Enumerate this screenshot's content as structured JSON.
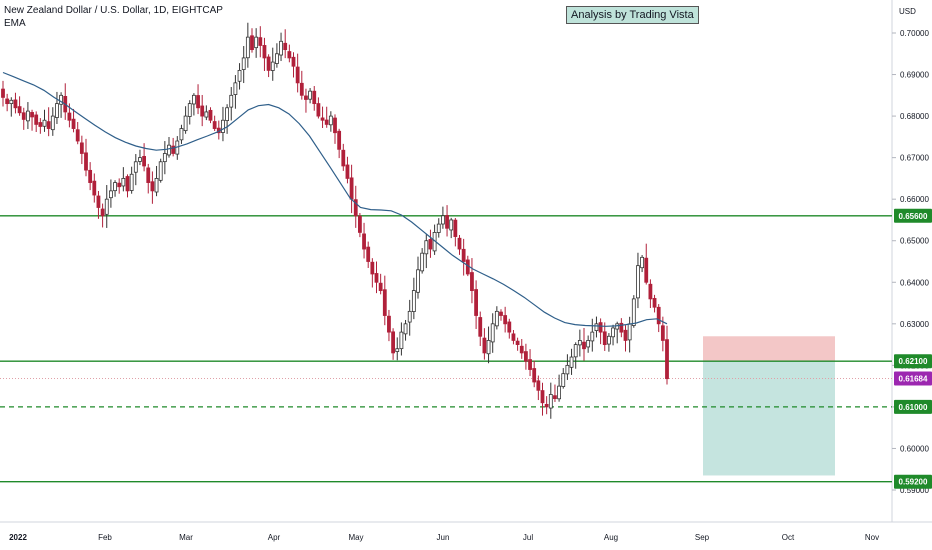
{
  "header": {
    "title": "New Zealand Dollar / U.S. Dollar, 1D, EIGHTCAP",
    "indicator": "EMA"
  },
  "watermark": "Analysis by Trading Vista",
  "currency": "USD",
  "colors": {
    "up": "#333333",
    "down": "#b0203a",
    "ema": "#2f5f8a",
    "level": "#1f8a2a",
    "price_tag": "#9c27b0",
    "stop_zone": "#f3c7c7",
    "target_zone": "#c5e4df"
  },
  "chart_data": {
    "type": "candlestick",
    "title": "New Zealand Dollar / U.S. Dollar, 1D, EIGHTCAP",
    "ylim": [
      0.5885,
      0.7135
    ],
    "y_ticks": [
      "0.70000",
      "0.69000",
      "0.68000",
      "0.67000",
      "0.66000",
      "0.65000",
      "0.64000",
      "0.63000",
      "0.62000",
      "0.61000",
      "0.60000",
      "0.59000"
    ],
    "x_labels": [
      "2022",
      "Feb",
      "Mar",
      "Apr",
      "May",
      "Jun",
      "Jul",
      "Aug",
      "Sep",
      "Oct",
      "Nov"
    ],
    "ohlc_close_approx": [
      0.6845,
      0.683,
      0.6838,
      0.682,
      0.6808,
      0.6792,
      0.6812,
      0.6798,
      0.678,
      0.6775,
      0.679,
      0.677,
      0.68,
      0.683,
      0.685,
      0.681,
      0.679,
      0.677,
      0.674,
      0.671,
      0.667,
      0.664,
      0.661,
      0.658,
      0.656,
      0.66,
      0.662,
      0.664,
      0.663,
      0.665,
      0.662,
      0.666,
      0.669,
      0.67,
      0.668,
      0.664,
      0.662,
      0.665,
      0.669,
      0.671,
      0.673,
      0.671,
      0.674,
      0.677,
      0.68,
      0.683,
      0.685,
      0.682,
      0.68,
      0.681,
      0.679,
      0.677,
      0.676,
      0.679,
      0.682,
      0.685,
      0.688,
      0.691,
      0.694,
      0.699,
      0.696,
      0.699,
      0.697,
      0.694,
      0.691,
      0.693,
      0.695,
      0.698,
      0.696,
      0.694,
      0.692,
      0.688,
      0.685,
      0.684,
      0.686,
      0.683,
      0.68,
      0.679,
      0.678,
      0.68,
      0.676,
      0.672,
      0.668,
      0.665,
      0.66,
      0.656,
      0.652,
      0.648,
      0.645,
      0.642,
      0.64,
      0.638,
      0.632,
      0.628,
      0.623,
      0.624,
      0.628,
      0.63,
      0.633,
      0.638,
      0.643,
      0.647,
      0.65,
      0.648,
      0.652,
      0.654,
      0.656,
      0.653,
      0.655,
      0.651,
      0.648,
      0.645,
      0.642,
      0.638,
      0.632,
      0.627,
      0.623,
      0.626,
      0.63,
      0.633,
      0.632,
      0.63,
      0.628,
      0.626,
      0.625,
      0.623,
      0.621,
      0.619,
      0.616,
      0.614,
      0.611,
      0.61,
      0.613,
      0.612,
      0.615,
      0.618,
      0.62,
      0.622,
      0.625,
      0.626,
      0.624,
      0.626,
      0.628,
      0.63,
      0.628,
      0.625,
      0.627,
      0.629,
      0.63,
      0.628,
      0.626,
      0.63,
      0.636,
      0.644,
      0.646,
      0.64,
      0.636,
      0.634,
      0.63,
      0.626,
      0.6168
    ],
    "ema_approx": [
      0.6905,
      0.6895,
      0.6885,
      0.6875,
      0.6862,
      0.6845,
      0.683,
      0.6812,
      0.6795,
      0.6778,
      0.6762,
      0.6748,
      0.6737,
      0.6728,
      0.6722,
      0.6718,
      0.672,
      0.6725,
      0.6733,
      0.6743,
      0.6752,
      0.6762,
      0.6775,
      0.6795,
      0.6815,
      0.6825,
      0.6828,
      0.682,
      0.6805,
      0.6782,
      0.6752,
      0.6715,
      0.6678,
      0.664,
      0.6602,
      0.658,
      0.6575,
      0.6574,
      0.6572,
      0.6562,
      0.6545,
      0.6525,
      0.6505,
      0.6485,
      0.6465,
      0.6448,
      0.6432,
      0.642,
      0.6408,
      0.6395,
      0.638,
      0.6364,
      0.6346,
      0.6328,
      0.6314,
      0.6303,
      0.6298,
      0.6296,
      0.6295,
      0.6294,
      0.6295,
      0.6298,
      0.6302,
      0.631,
      0.6312,
      0.63
    ],
    "levels": [
      {
        "price": 0.656,
        "label": "0.65600",
        "style": "solid"
      },
      {
        "price": 0.621,
        "label": "0.62100",
        "style": "solid"
      },
      {
        "price": 0.61,
        "label": "0.61000",
        "style": "dashed"
      },
      {
        "price": 0.592,
        "label": "0.59200",
        "style": "solid"
      }
    ],
    "last_price": {
      "price": 0.61684,
      "label": "0.61684"
    },
    "position": {
      "stop": 0.627,
      "entry": 0.621,
      "target": 0.5935
    }
  }
}
